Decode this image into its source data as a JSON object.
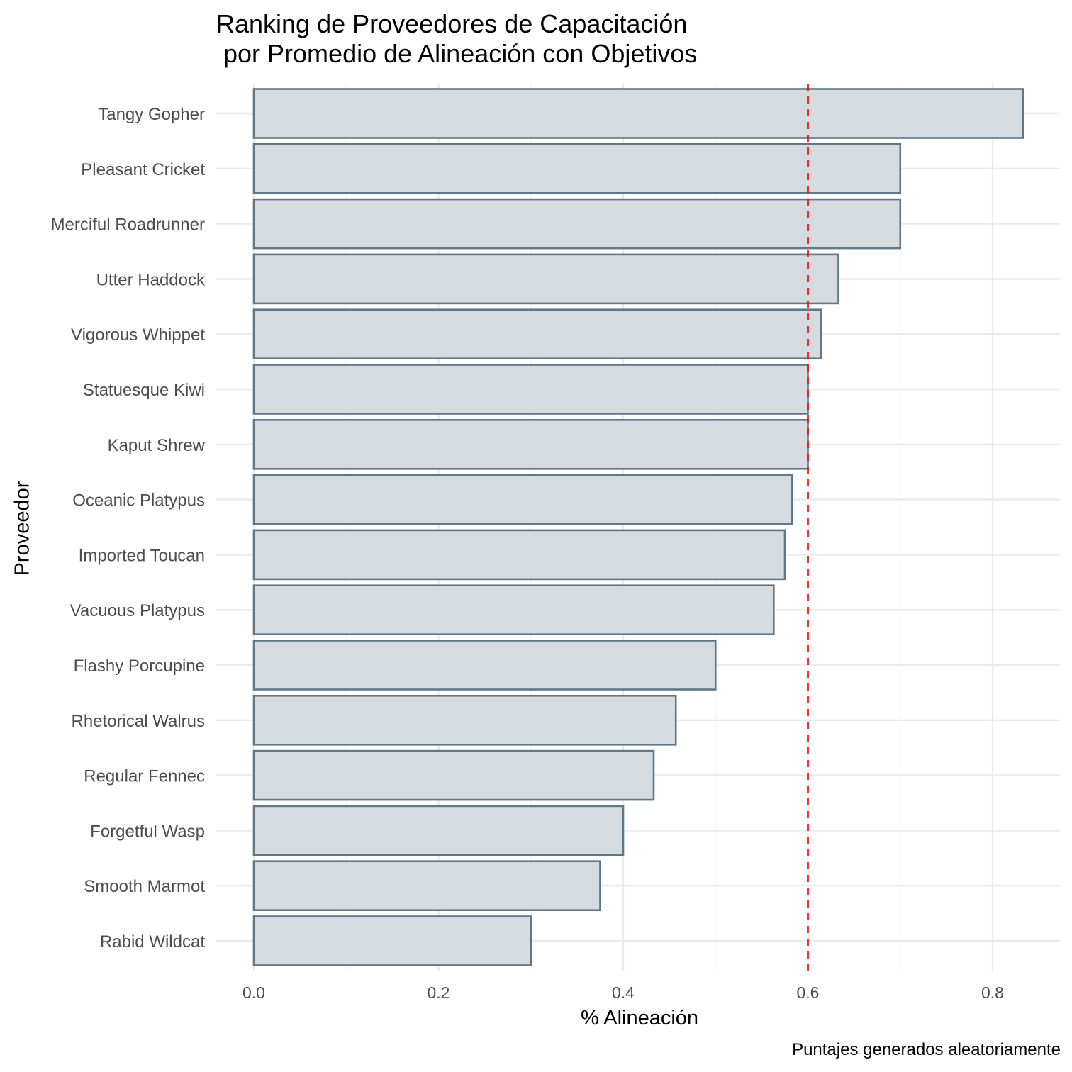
{
  "chart_data": {
    "type": "bar",
    "orientation": "horizontal",
    "title": "Ranking de Proveedores de Capacitación\n por Promedio de Alineación con Objetivos",
    "title_lines": [
      "Ranking de Proveedores de Capacitación",
      " por Promedio de Alineación con Objetivos"
    ],
    "xlabel": "% Alineación",
    "ylabel": "Proveedor",
    "caption": "Puntajes generados aleatoriamente",
    "xlim": [
      -0.05,
      0.875
    ],
    "xticks": [
      0.0,
      0.2,
      0.4,
      0.6,
      0.8
    ],
    "xtick_labels": [
      "0.0",
      "0.2",
      "0.4",
      "0.6",
      "0.8"
    ],
    "grid": true,
    "reference_line": {
      "x": 0.6,
      "style": "dashed",
      "color": "#ff0000"
    },
    "bar_fill": "#d6dbdf",
    "bar_border": "#5f7889",
    "categories": [
      "Tangy Gopher",
      "Pleasant Cricket",
      "Merciful Roadrunner",
      "Utter Haddock",
      "Vigorous Whippet",
      "Statuesque Kiwi",
      "Kaput Shrew",
      "Oceanic Platypus",
      "Imported Toucan",
      "Vacuous Platypus",
      "Flashy Porcupine",
      "Rhetorical Walrus",
      "Regular Fennec",
      "Forgetful Wasp",
      "Smooth Marmot",
      "Rabid Wildcat"
    ],
    "values": [
      0.833,
      0.7,
      0.7,
      0.633,
      0.614,
      0.6,
      0.6,
      0.583,
      0.575,
      0.563,
      0.5,
      0.457,
      0.433,
      0.4,
      0.375,
      0.3
    ]
  }
}
